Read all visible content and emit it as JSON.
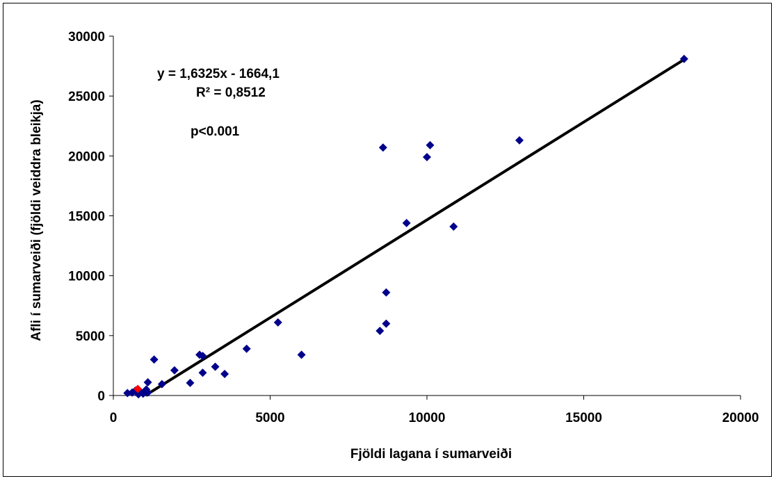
{
  "chart_data": {
    "type": "scatter",
    "xlabel": "Fjöldi lagana í sumarveiði",
    "ylabel": "Afli í sumarveiði (fjöldi veiddra bleikja)",
    "xlim": [
      0,
      20000
    ],
    "ylim": [
      0,
      30000
    ],
    "x_ticks": [
      "0",
      "5000",
      "10000",
      "15000",
      "20000"
    ],
    "y_ticks": [
      "0",
      "5000",
      "10000",
      "15000",
      "20000",
      "25000",
      "30000"
    ],
    "x_tick_values": [
      0,
      5000,
      10000,
      15000,
      20000
    ],
    "y_tick_values": [
      0,
      5000,
      10000,
      15000,
      20000,
      25000,
      30000
    ],
    "grid": false,
    "legend": "none",
    "annotations": {
      "equation": "y = 1,6325x  - 1664,1",
      "r_squared": "R² = 0,8512",
      "p_value": "p<0.001"
    },
    "trendline": {
      "slope": 1.6325,
      "intercept": -1664.1,
      "x_range": [
        1020,
        18200
      ],
      "color": "#000000"
    },
    "series": [
      {
        "color": "#00008b",
        "points": [
          [
            18200,
            28100
          ],
          [
            12950,
            21300
          ],
          [
            10100,
            20900
          ],
          [
            8600,
            20700
          ],
          [
            10000,
            19900
          ],
          [
            9350,
            14400
          ],
          [
            10850,
            14100
          ],
          [
            8700,
            8600
          ],
          [
            5250,
            6100
          ],
          [
            8700,
            6000
          ],
          [
            8500,
            5400
          ],
          [
            4250,
            3900
          ],
          [
            6000,
            3400
          ],
          [
            2750,
            3400
          ],
          [
            2850,
            3300
          ],
          [
            1300,
            3000
          ],
          [
            3250,
            2400
          ],
          [
            1950,
            2100
          ],
          [
            2850,
            1900
          ],
          [
            3550,
            1800
          ],
          [
            1100,
            1100
          ],
          [
            2450,
            1050
          ],
          [
            1550,
            950
          ],
          [
            1050,
            500
          ],
          [
            700,
            400
          ],
          [
            850,
            350
          ],
          [
            600,
            250
          ],
          [
            450,
            200
          ],
          [
            950,
            150
          ],
          [
            800,
            100
          ],
          [
            1100,
            250
          ]
        ]
      },
      {
        "color": "#ff0000",
        "points": [
          [
            780,
            550
          ]
        ]
      }
    ]
  }
}
